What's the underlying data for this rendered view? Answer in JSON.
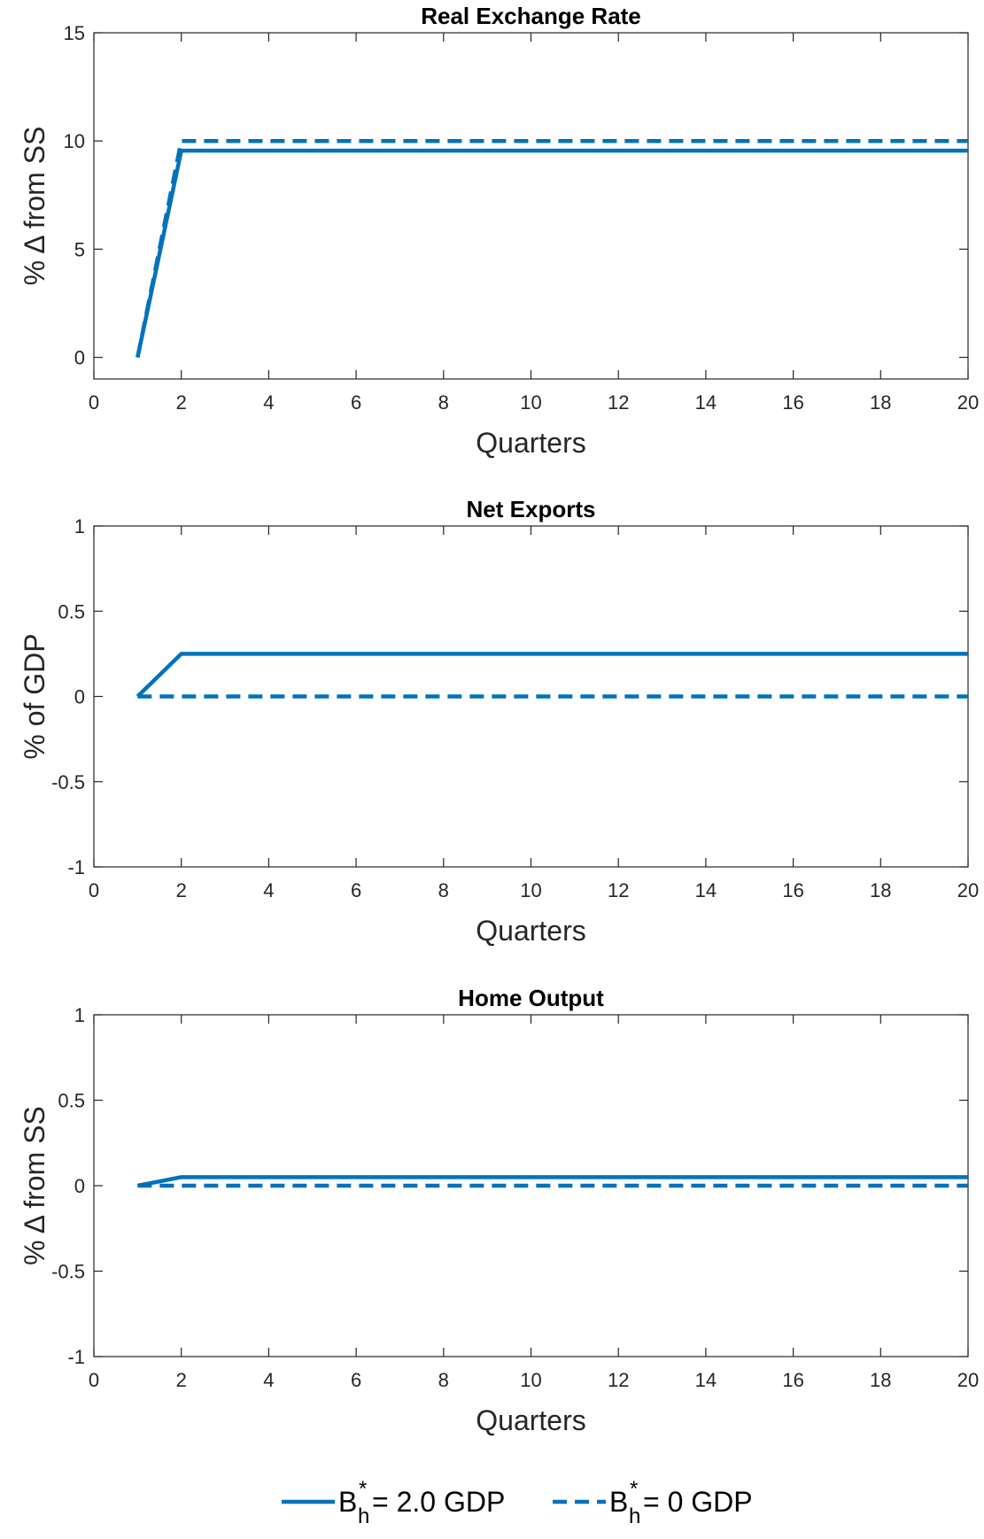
{
  "colors": {
    "series": "#0072BD",
    "axis": "#262626"
  },
  "chart_data": [
    {
      "type": "line",
      "title": "Real Exchange Rate",
      "xlabel": "Quarters",
      "ylabel": "% Δ from SS",
      "xlim": [
        0,
        20
      ],
      "ylim": [
        -1,
        15
      ],
      "xticks": [
        0,
        2,
        4,
        6,
        8,
        10,
        12,
        14,
        16,
        18,
        20
      ],
      "yticks": [
        0,
        5,
        10,
        15
      ],
      "grid": false,
      "series": [
        {
          "name": "B_h^* = 2.0 GDP",
          "style": "solid",
          "x": [
            1,
            2,
            3,
            4,
            5,
            6,
            7,
            8,
            9,
            10,
            11,
            12,
            13,
            14,
            15,
            16,
            17,
            18,
            19,
            20
          ],
          "values": [
            0,
            9.55,
            9.55,
            9.55,
            9.55,
            9.55,
            9.55,
            9.55,
            9.55,
            9.55,
            9.55,
            9.55,
            9.55,
            9.55,
            9.55,
            9.55,
            9.55,
            9.55,
            9.55,
            9.55
          ]
        },
        {
          "name": "B_h^* = 0 GDP",
          "style": "dashed",
          "x": [
            1,
            2,
            3,
            4,
            5,
            6,
            7,
            8,
            9,
            10,
            11,
            12,
            13,
            14,
            15,
            16,
            17,
            18,
            19,
            20
          ],
          "values": [
            0,
            10.0,
            10.0,
            10.0,
            10.0,
            10.0,
            10.0,
            10.0,
            10.0,
            10.0,
            10.0,
            10.0,
            10.0,
            10.0,
            10.0,
            10.0,
            10.0,
            10.0,
            10.0,
            10.0
          ]
        }
      ]
    },
    {
      "type": "line",
      "title": "Net Exports",
      "xlabel": "Quarters",
      "ylabel": "% of GDP",
      "xlim": [
        0,
        20
      ],
      "ylim": [
        -1,
        1
      ],
      "xticks": [
        0,
        2,
        4,
        6,
        8,
        10,
        12,
        14,
        16,
        18,
        20
      ],
      "yticks": [
        -1,
        -0.5,
        0,
        0.5,
        1
      ],
      "grid": false,
      "series": [
        {
          "name": "B_h^* = 2.0 GDP",
          "style": "solid",
          "x": [
            1,
            2,
            3,
            4,
            5,
            6,
            7,
            8,
            9,
            10,
            11,
            12,
            13,
            14,
            15,
            16,
            17,
            18,
            19,
            20
          ],
          "values": [
            0,
            0.25,
            0.25,
            0.25,
            0.25,
            0.25,
            0.25,
            0.25,
            0.25,
            0.25,
            0.25,
            0.25,
            0.25,
            0.25,
            0.25,
            0.25,
            0.25,
            0.25,
            0.25,
            0.25
          ]
        },
        {
          "name": "B_h^* = 0 GDP",
          "style": "dashed",
          "x": [
            1,
            2,
            3,
            4,
            5,
            6,
            7,
            8,
            9,
            10,
            11,
            12,
            13,
            14,
            15,
            16,
            17,
            18,
            19,
            20
          ],
          "values": [
            0,
            0,
            0,
            0,
            0,
            0,
            0,
            0,
            0,
            0,
            0,
            0,
            0,
            0,
            0,
            0,
            0,
            0,
            0,
            0
          ]
        }
      ]
    },
    {
      "type": "line",
      "title": "Home Output",
      "xlabel": "Quarters",
      "ylabel": "% Δ from SS",
      "xlim": [
        0,
        20
      ],
      "ylim": [
        -1,
        1
      ],
      "xticks": [
        0,
        2,
        4,
        6,
        8,
        10,
        12,
        14,
        16,
        18,
        20
      ],
      "yticks": [
        -1,
        -0.5,
        0,
        0.5,
        1
      ],
      "grid": false,
      "series": [
        {
          "name": "B_h^* = 2.0 GDP",
          "style": "solid",
          "x": [
            1,
            2,
            3,
            4,
            5,
            6,
            7,
            8,
            9,
            10,
            11,
            12,
            13,
            14,
            15,
            16,
            17,
            18,
            19,
            20
          ],
          "values": [
            0,
            0.05,
            0.05,
            0.05,
            0.05,
            0.05,
            0.05,
            0.05,
            0.05,
            0.05,
            0.05,
            0.05,
            0.05,
            0.05,
            0.05,
            0.05,
            0.05,
            0.05,
            0.05,
            0.05
          ]
        },
        {
          "name": "B_h^* = 0 GDP",
          "style": "dashed",
          "x": [
            1,
            2,
            3,
            4,
            5,
            6,
            7,
            8,
            9,
            10,
            11,
            12,
            13,
            14,
            15,
            16,
            17,
            18,
            19,
            20
          ],
          "values": [
            0,
            0,
            0,
            0,
            0,
            0,
            0,
            0,
            0,
            0,
            0,
            0,
            0,
            0,
            0,
            0,
            0,
            0,
            0,
            0
          ]
        }
      ]
    }
  ],
  "legend": {
    "placement": "bottom-center",
    "entries": [
      {
        "base": "B",
        "sub": "h",
        "sup": "*",
        "rest": " = 2.0 GDP",
        "style": "solid"
      },
      {
        "base": "B",
        "sub": "h",
        "sup": "*",
        "rest": " = 0 GDP",
        "style": "dashed"
      }
    ]
  }
}
